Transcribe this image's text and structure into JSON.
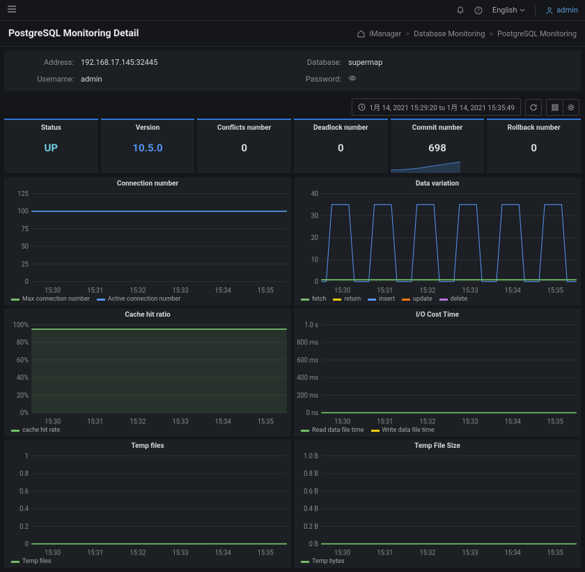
{
  "topbar": {
    "language": "English",
    "user": "admin"
  },
  "header": {
    "title": "PostgreSQL Monitoring Detail",
    "breadcrumbs": [
      "iManager",
      "Database Monitoring",
      "PostgreSQL Monitoring"
    ]
  },
  "info": {
    "address_label": "Address:",
    "address": "192.168.17.145:32445",
    "username_label": "Username:",
    "username": "admin",
    "database_label": "Database:",
    "database": "supermap",
    "password_label": "Password:"
  },
  "toolbar": {
    "time_range": "1月 14, 2021 15:29:20 to 1月 14, 2021 15:35:49"
  },
  "stats": [
    {
      "title": "Status",
      "value": "UP",
      "cls": "up"
    },
    {
      "title": "Version",
      "value": "10.5.0",
      "cls": "version"
    },
    {
      "title": "Conflicts number",
      "value": "0",
      "cls": ""
    },
    {
      "title": "Deadlock number",
      "value": "0",
      "cls": ""
    },
    {
      "title": "Commit number",
      "value": "698",
      "cls": "",
      "spark": true
    },
    {
      "title": "Rollback number",
      "value": "0",
      "cls": ""
    }
  ],
  "colors": {
    "series1": "#73bf69",
    "series2": "#5794f2",
    "series3": "#f2cc0c",
    "series4": "#ff780a",
    "series5": "#b877d9",
    "spark_fill": "#2d4a6b",
    "grid": "#2c2f33",
    "axis": "#8e8e8e"
  },
  "x_ticks": [
    "15:30",
    "15:31",
    "15:32",
    "15:33",
    "15:34",
    "15:35"
  ],
  "charts": {
    "connection": {
      "title": "Connection number",
      "ylim": [
        0,
        125
      ],
      "yticks": [
        0,
        25,
        50,
        75,
        100,
        125
      ],
      "series": [
        {
          "name": "Max connection number",
          "color": "#73bf69",
          "y": 100
        },
        {
          "name": "Active connection number",
          "color": "#5794f2",
          "y": 100
        }
      ]
    },
    "data_variation": {
      "title": "Data variation",
      "ylim": [
        0,
        40
      ],
      "yticks": [
        0,
        10,
        20,
        30,
        40
      ],
      "legend": [
        {
          "name": "fetch",
          "color": "#73bf69"
        },
        {
          "name": "return",
          "color": "#f2cc0c"
        },
        {
          "name": "insert",
          "color": "#5794f2"
        },
        {
          "name": "update",
          "color": "#ff780a"
        },
        {
          "name": "delete",
          "color": "#b877d9"
        }
      ],
      "peaks": 35
    },
    "cache": {
      "title": "Cache hit ratio",
      "ylim": [
        0,
        100
      ],
      "yticks": [
        0,
        20,
        40,
        60,
        80,
        100
      ],
      "ysuffix": "%",
      "series": [
        {
          "name": "cache hit rate",
          "color": "#73bf69",
          "y": 95
        }
      ]
    },
    "io": {
      "title": "I/O Cost Time",
      "ylabels": [
        "0 ns",
        "200 ms",
        "400 ms",
        "600 ms",
        "800 ms",
        "1.0 s"
      ],
      "legend": [
        {
          "name": "Read data file time",
          "color": "#73bf69"
        },
        {
          "name": "Write data file time",
          "color": "#f2cc0c"
        }
      ]
    },
    "temp_files": {
      "title": "Temp files",
      "ylim": [
        0,
        1.0
      ],
      "yticks": [
        0,
        0.2,
        0.4,
        0.6,
        0.8,
        1.0
      ],
      "legend": [
        {
          "name": "Temp files",
          "color": "#73bf69"
        }
      ]
    },
    "temp_size": {
      "title": "Temp File Size",
      "ylabels": [
        "0 B",
        "0.2 B",
        "0.4 B",
        "0.6 B",
        "0.8 B",
        "1.0 B"
      ],
      "legend": [
        {
          "name": "Temp bytes",
          "color": "#73bf69"
        }
      ]
    }
  }
}
